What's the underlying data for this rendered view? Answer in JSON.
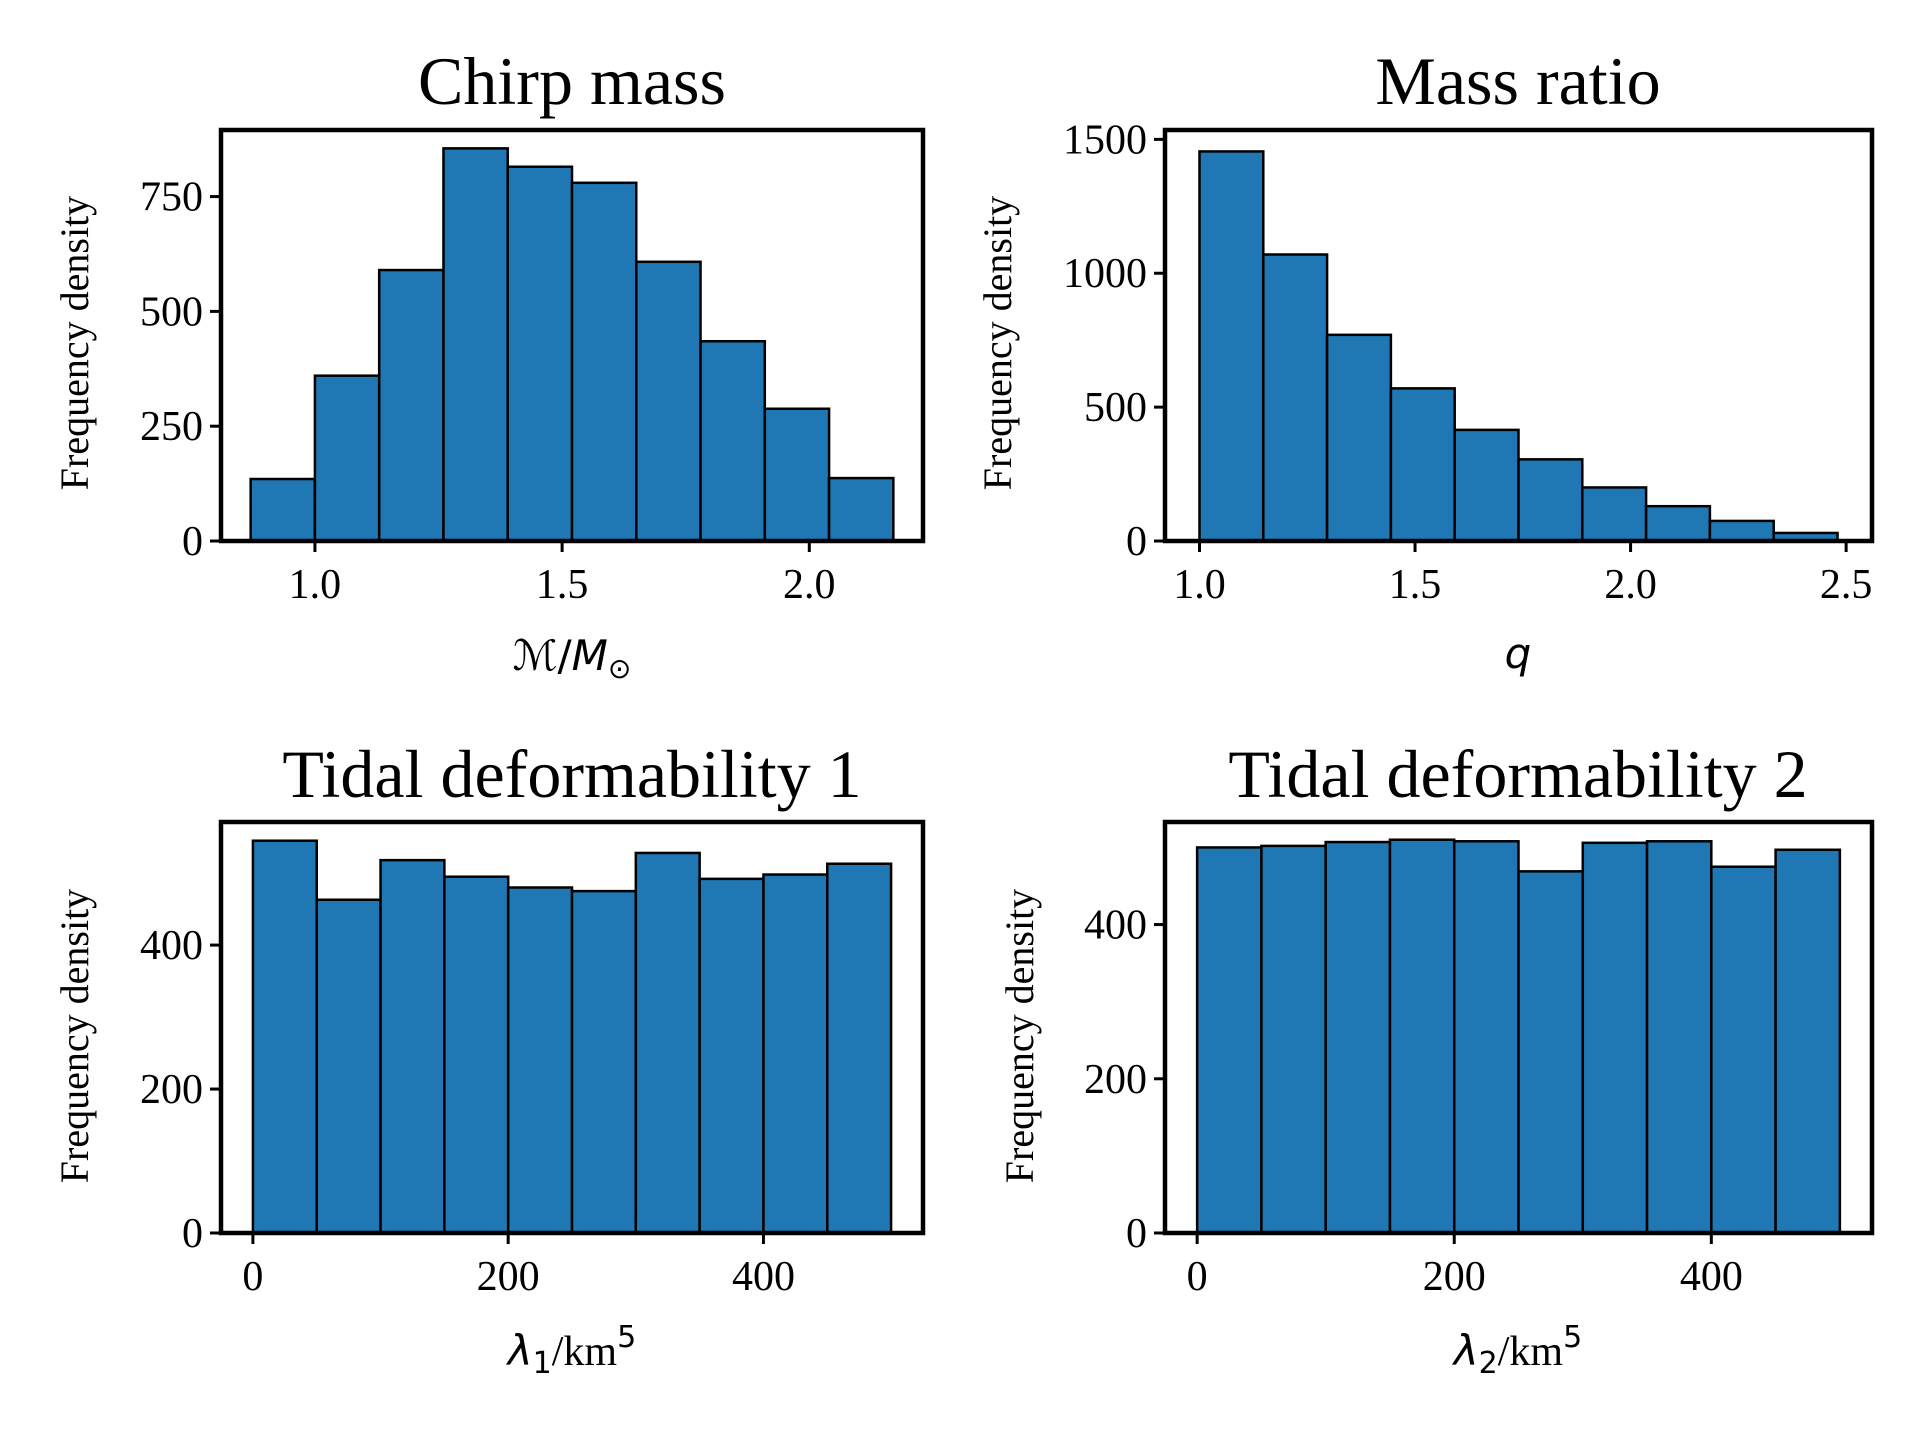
{
  "colors": {
    "bar_fill": "#1f77b4",
    "bar_edge": "#000000",
    "frame": "#000000"
  },
  "chart_data": [
    {
      "type": "bar",
      "title": "Chirp mass",
      "ylabel": "Frequency density",
      "xlabel": {
        "math": "ℳ",
        "sep": "/",
        "sym": "M",
        "sub": "⊙",
        "sup": ""
      },
      "bin_edges": [
        0.87,
        1.0,
        1.13,
        1.26,
        1.39,
        1.52,
        1.65,
        1.78,
        1.91,
        2.04,
        2.17
      ],
      "values": [
        135,
        360,
        590,
        855,
        815,
        780,
        608,
        435,
        288,
        137
      ],
      "xlim": [
        0.81,
        2.23
      ],
      "ylim": [
        0,
        895
      ],
      "xticks": [
        1.0,
        1.5,
        2.0
      ],
      "xtick_labels": [
        "1.0",
        "1.5",
        "2.0"
      ],
      "yticks": [
        0,
        250,
        500,
        750
      ],
      "ytick_labels": [
        "0",
        "250",
        "500",
        "750"
      ]
    },
    {
      "type": "bar",
      "title": "Mass ratio",
      "ylabel": "Frequency density",
      "xlabel": {
        "math": "q",
        "sep": "",
        "sym": "",
        "sub": "",
        "sup": ""
      },
      "bin_edges": [
        1.0,
        1.148,
        1.296,
        1.444,
        1.592,
        1.74,
        1.888,
        2.036,
        2.184,
        2.332,
        2.48
      ],
      "values": [
        1455,
        1070,
        770,
        570,
        415,
        305,
        200,
        130,
        75,
        30
      ],
      "xlim": [
        0.92,
        2.56
      ],
      "ylim": [
        0,
        1535
      ],
      "xticks": [
        1.0,
        1.5,
        2.0,
        2.5
      ],
      "xtick_labels": [
        "1.0",
        "1.5",
        "2.0",
        "2.5"
      ],
      "yticks": [
        0,
        500,
        1000,
        1500
      ],
      "ytick_labels": [
        "0",
        "500",
        "1000",
        "1500"
      ]
    },
    {
      "type": "bar",
      "title": "Tidal deformability 1",
      "ylabel": "Frequency density",
      "xlabel": {
        "math": "λ",
        "mathsub": "1",
        "sep": "/",
        "sym": "km",
        "sub": "",
        "sup": "5"
      },
      "bin_edges": [
        0,
        50,
        100,
        150,
        200,
        250,
        300,
        350,
        400,
        450,
        500
      ],
      "values": [
        545,
        463,
        518,
        495,
        480,
        475,
        528,
        492,
        498,
        513
      ],
      "xlim": [
        -25,
        525
      ],
      "ylim": [
        0,
        571
      ],
      "xticks": [
        0,
        200,
        400
      ],
      "xtick_labels": [
        "0",
        "200",
        "400"
      ],
      "yticks": [
        0,
        200,
        400
      ],
      "ytick_labels": [
        "0",
        "200",
        "400"
      ]
    },
    {
      "type": "bar",
      "title": "Tidal deformability 2",
      "ylabel": "Frequency density",
      "xlabel": {
        "math": "λ",
        "mathsub": "2",
        "sep": "/",
        "sym": "km",
        "sub": "",
        "sup": "5"
      },
      "bin_edges": [
        0,
        50,
        100,
        150,
        200,
        250,
        300,
        350,
        400,
        450,
        500
      ],
      "values": [
        500,
        502,
        507,
        510,
        508,
        469,
        506,
        508,
        475,
        497
      ],
      "xlim": [
        -25,
        525
      ],
      "ylim": [
        0,
        533
      ],
      "xticks": [
        0,
        200,
        400
      ],
      "xtick_labels": [
        "0",
        "200",
        "400"
      ],
      "yticks": [
        0,
        200,
        400
      ],
      "ytick_labels": [
        "0",
        "200",
        "400"
      ]
    }
  ]
}
